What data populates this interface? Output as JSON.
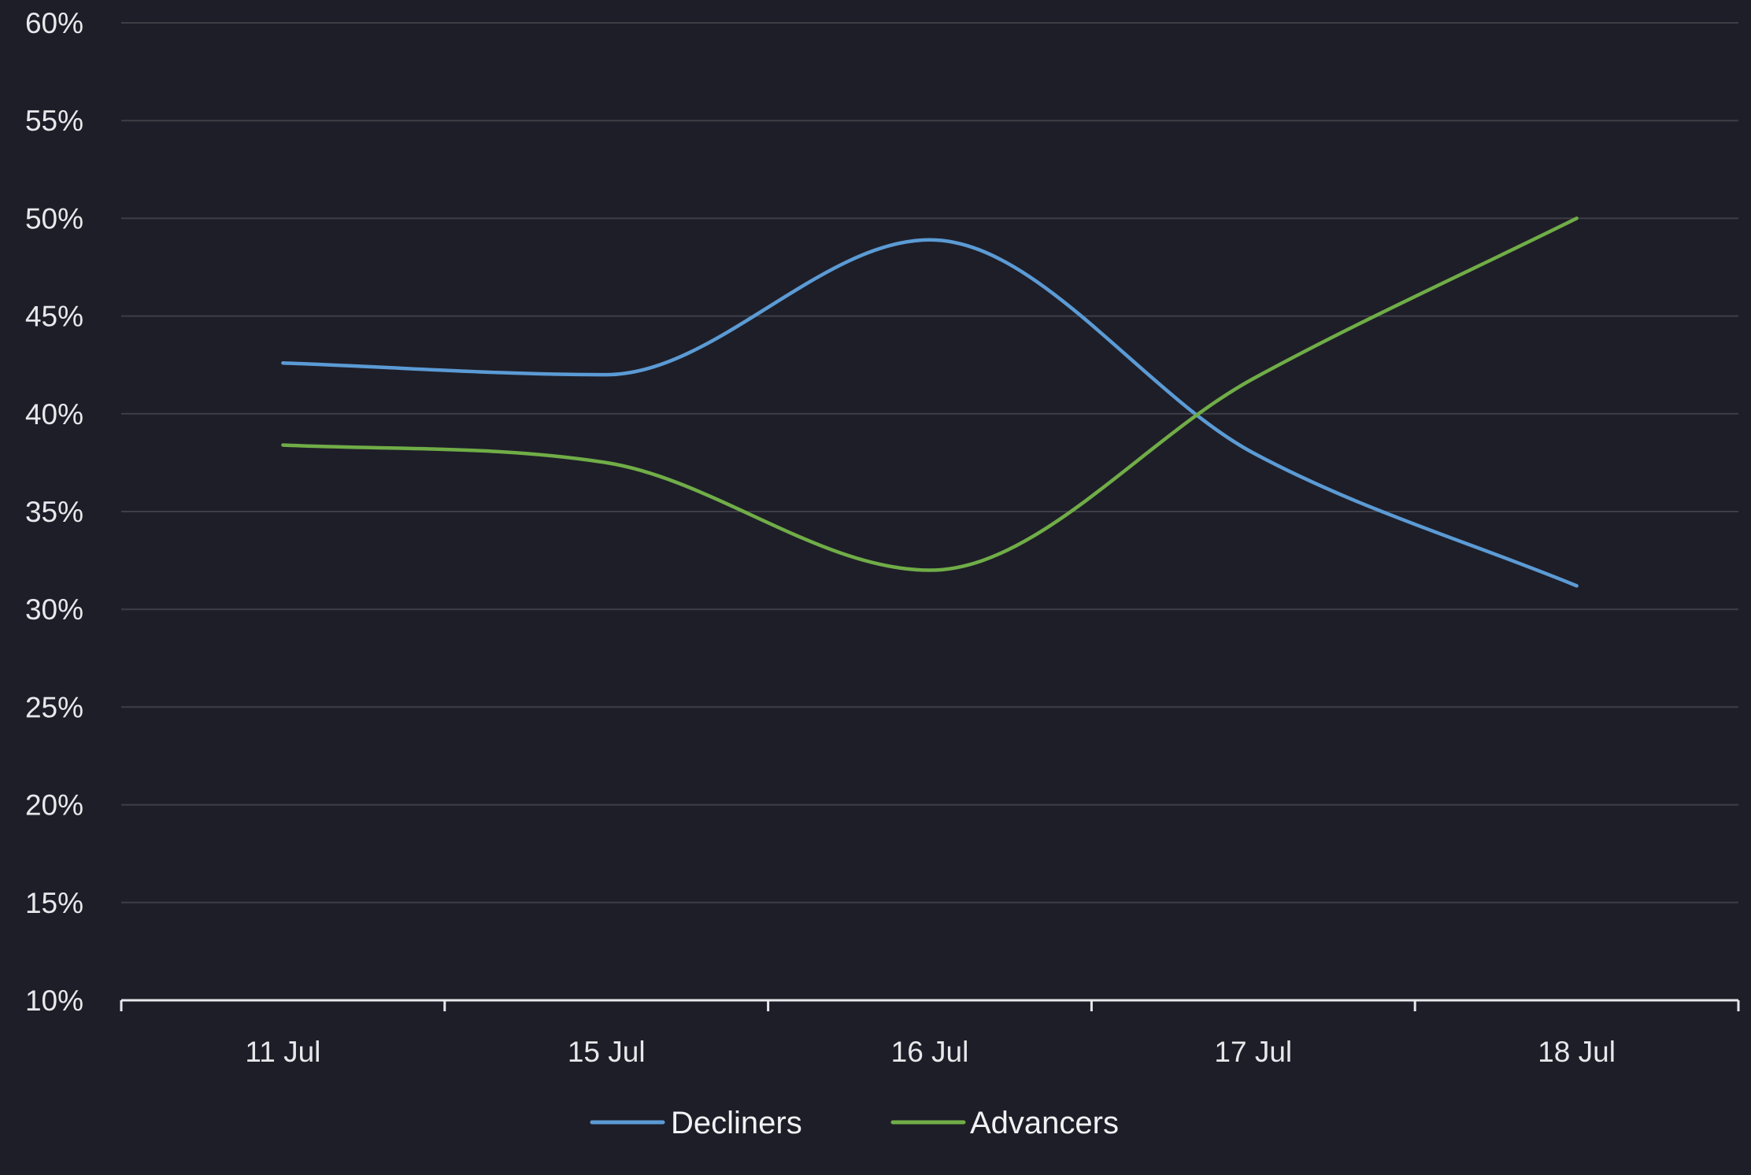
{
  "chart_data": {
    "type": "line",
    "categories": [
      "11 Jul",
      "15 Jul",
      "16 Jul",
      "17 Jul",
      "18 Jul"
    ],
    "y_ticks": [
      "10%",
      "15%",
      "20%",
      "25%",
      "30%",
      "35%",
      "40%",
      "45%",
      "50%",
      "55%",
      "60%"
    ],
    "ylim": [
      10,
      60
    ],
    "y_unit": "%",
    "grid": true,
    "legend_position": "bottom-center",
    "series": [
      {
        "name": "Decliners",
        "color": "#5b9bd5",
        "values": [
          42.6,
          42.0,
          48.9,
          38.0,
          31.2
        ]
      },
      {
        "name": "Advancers",
        "color": "#70ad47",
        "values": [
          38.4,
          37.5,
          32.0,
          41.8,
          50.0
        ]
      }
    ]
  }
}
